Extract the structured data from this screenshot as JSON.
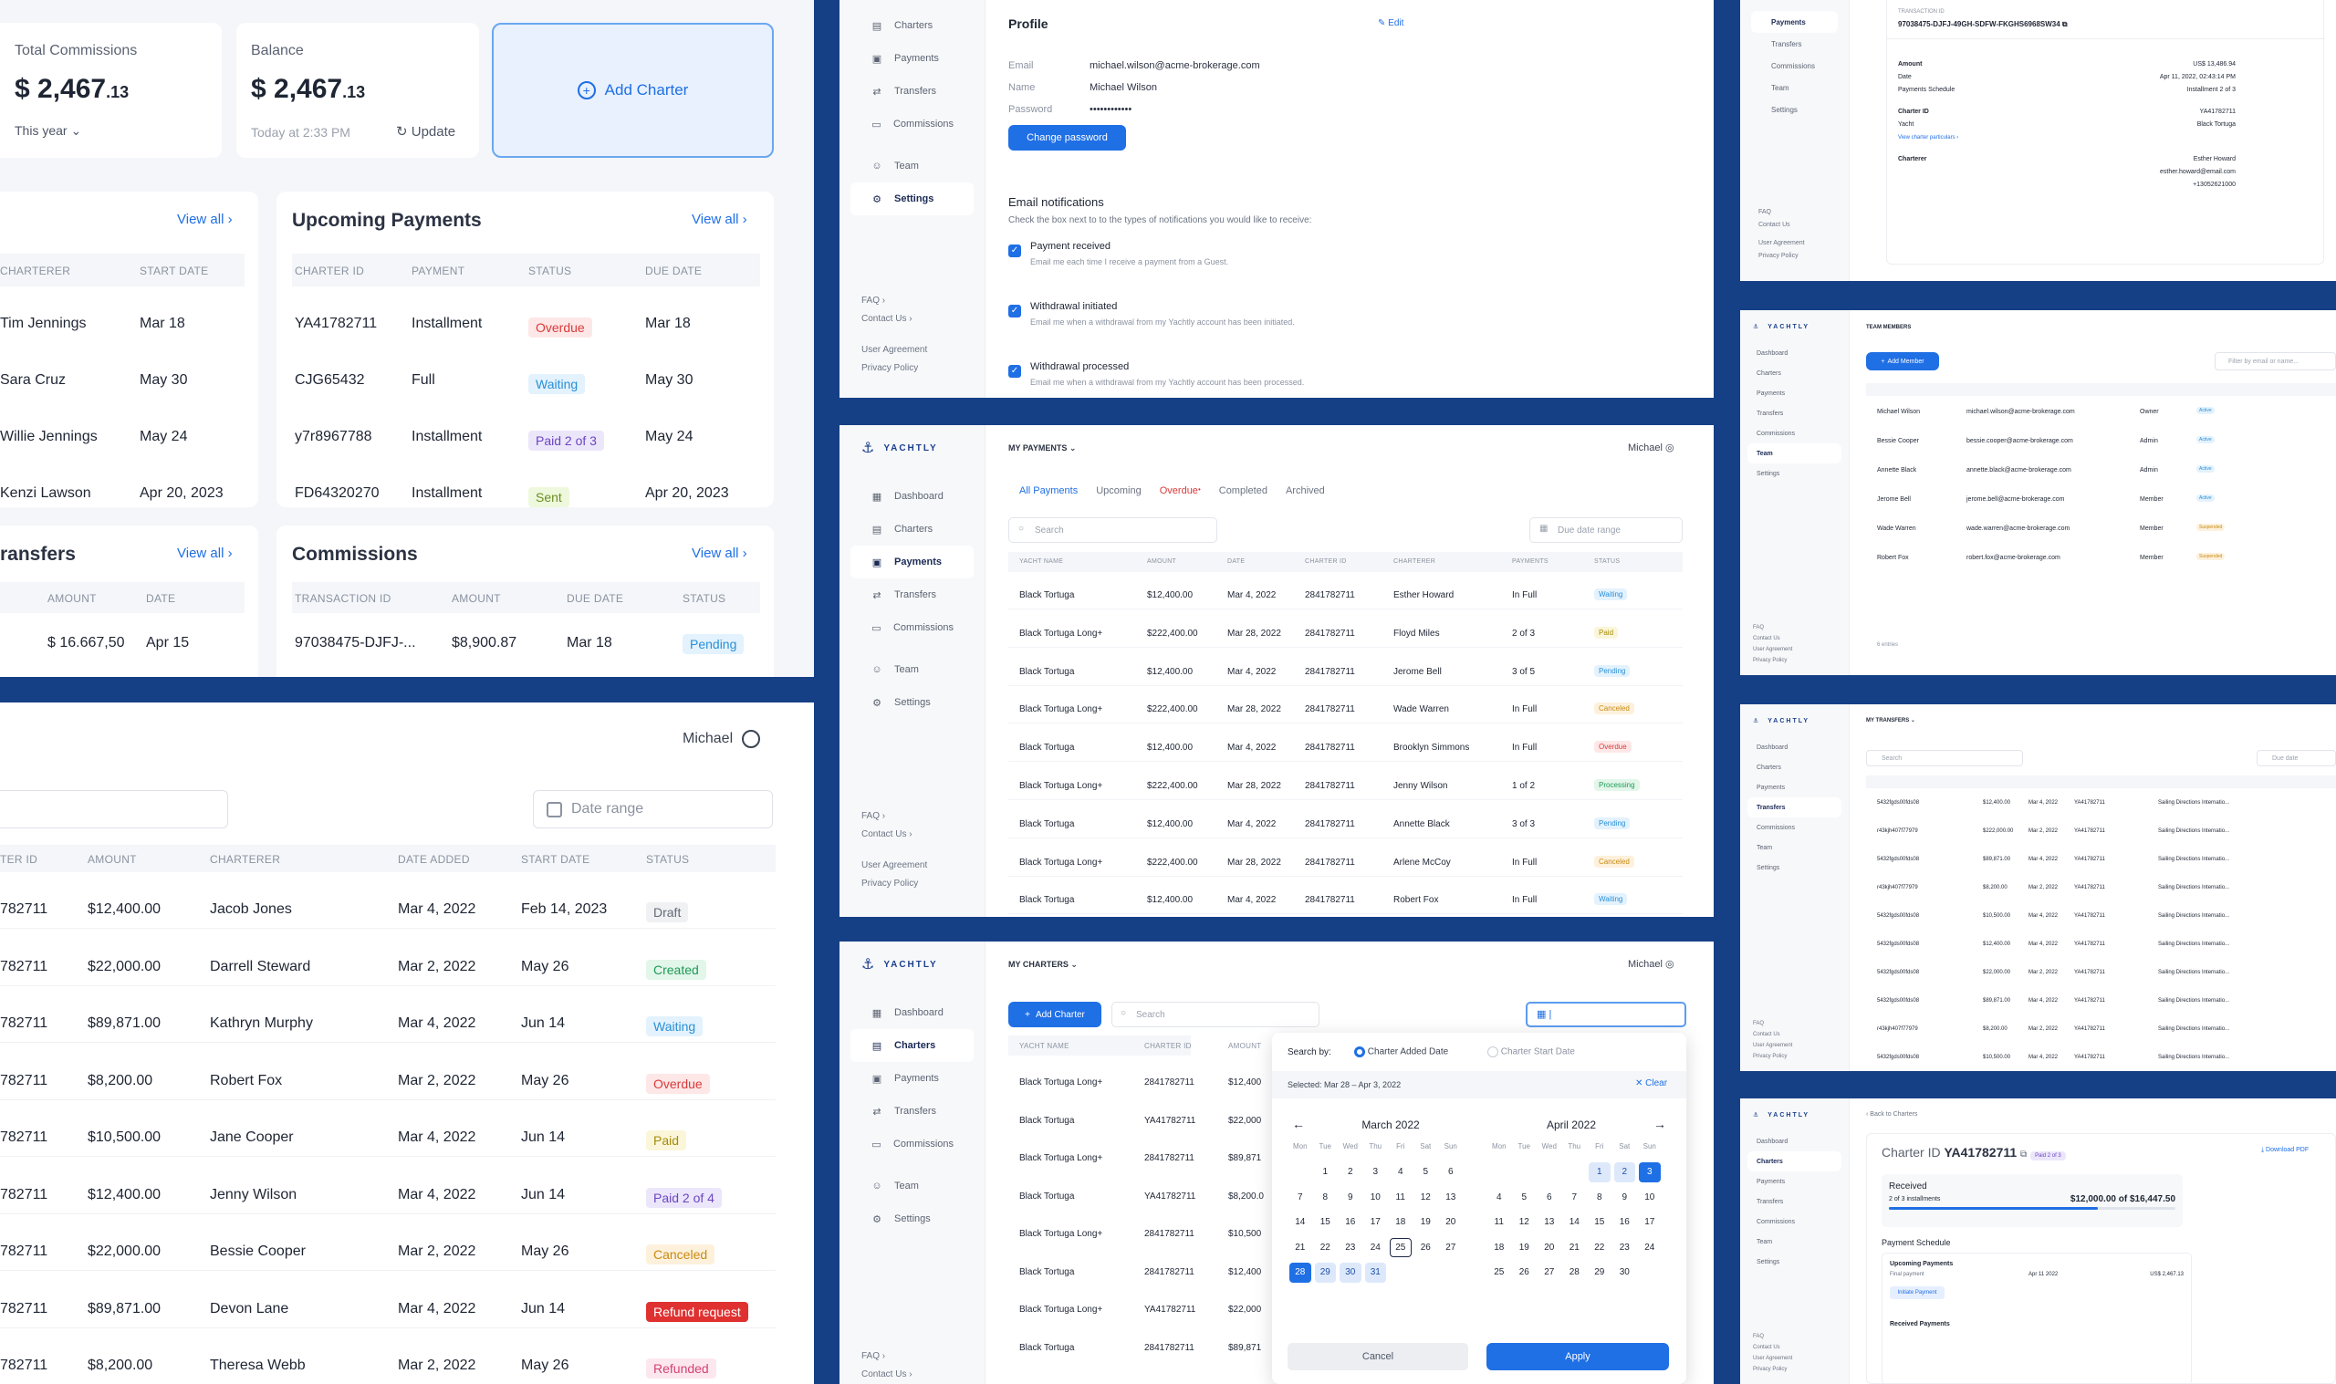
{
  "dash": {
    "total_commissions": {
      "label": "Total Commissions",
      "amount": "$ 2,467",
      "cents": ".13",
      "period": "This year"
    },
    "balance": {
      "label": "Balance",
      "amount": "$ 2,467",
      "cents": ".13",
      "updated": "Today at 2:33 PM",
      "update_btn": "Update"
    },
    "add_charter": "Add Charter",
    "view_all": "View all",
    "left_table": {
      "headers": [
        "CHARTERER",
        "START DATE"
      ],
      "rows": [
        [
          "Tim Jennings",
          "Mar 18"
        ],
        [
          "Sara Cruz",
          "May 30"
        ],
        [
          "Willie Jennings",
          "May 24"
        ],
        [
          "Kenzi Lawson",
          "Apr 20, 2023"
        ]
      ]
    },
    "upcoming": {
      "title": "Upcoming Payments",
      "headers": [
        "CHARTER ID",
        "PAYMENT",
        "STATUS",
        "DUE DATE"
      ],
      "rows": [
        {
          "id": "YA41782711",
          "payment": "Installment",
          "status": "Overdue",
          "due": "Mar 18"
        },
        {
          "id": "CJG65432",
          "payment": "Full",
          "status": "Waiting",
          "due": "May 30"
        },
        {
          "id": "y7r8967788",
          "payment": "Installment",
          "status": "Paid 2 of 3",
          "due": "May 24"
        },
        {
          "id": "FD64320270",
          "payment": "Installment",
          "status": "Sent",
          "due": "Apr 20, 2023"
        }
      ]
    },
    "transfers": {
      "title": "ransfers",
      "headers": [
        "AMOUNT",
        "DATE"
      ],
      "row": [
        "$ 16.667,50",
        "Apr 15"
      ]
    },
    "commissions": {
      "title": "Commissions",
      "headers": [
        "TRANSACTION ID",
        "AMOUNT",
        "DUE DATE",
        "STATUS"
      ],
      "row": {
        "id": "97038475-DJFJ-...",
        "amount": "$8,900.87",
        "due": "Mar 18",
        "status": "Pending"
      }
    }
  },
  "charters_big": {
    "user": "Michael",
    "date_range": "Date range",
    "headers": [
      "TER ID",
      "AMOUNT",
      "CHARTERER",
      "DATE ADDED",
      "START DATE",
      "STATUS"
    ],
    "rows": [
      {
        "id": "782711",
        "amount": "$12,400.00",
        "charterer": "Jacob Jones",
        "added": "Mar 4, 2022",
        "start": "Feb 14, 2023",
        "status": "Draft"
      },
      {
        "id": "782711",
        "amount": "$22,000.00",
        "charterer": "Darrell Steward",
        "added": "Mar 2, 2022",
        "start": "May 26",
        "status": "Created"
      },
      {
        "id": "782711",
        "amount": "$89,871.00",
        "charterer": "Kathryn Murphy",
        "added": "Mar 4, 2022",
        "start": "Jun 14",
        "status": "Waiting"
      },
      {
        "id": "782711",
        "amount": "$8,200.00",
        "charterer": "Robert Fox",
        "added": "Mar 2, 2022",
        "start": "May 26",
        "status": "Overdue"
      },
      {
        "id": "782711",
        "amount": "$10,500.00",
        "charterer": "Jane Cooper",
        "added": "Mar 4, 2022",
        "start": "Jun 14",
        "status": "Paid"
      },
      {
        "id": "782711",
        "amount": "$12,400.00",
        "charterer": "Jenny Wilson",
        "added": "Mar 4, 2022",
        "start": "Jun 14",
        "status": "Paid 2 of 4"
      },
      {
        "id": "782711",
        "amount": "$22,000.00",
        "charterer": "Bessie Cooper",
        "added": "Mar 2, 2022",
        "start": "May 26",
        "status": "Canceled"
      },
      {
        "id": "782711",
        "amount": "$89,871.00",
        "charterer": "Devon Lane",
        "added": "Mar 4, 2022",
        "start": "Jun 14",
        "status": "Refund request"
      },
      {
        "id": "782711",
        "amount": "$8,200.00",
        "charterer": "Theresa Webb",
        "added": "Mar 2, 2022",
        "start": "May 26",
        "status": "Refunded"
      }
    ]
  },
  "nav": {
    "brand": "YACHTLY",
    "dashboard": "Dashboard",
    "charters": "Charters",
    "payments": "Payments",
    "transfers": "Transfers",
    "commissions": "Commissions",
    "team": "Team",
    "settings": "Settings",
    "faq": "FAQ",
    "contact": "Contact Us",
    "agreement": "User Agreement",
    "privacy": "Privacy Policy"
  },
  "settings": {
    "profile": "Profile",
    "edit": "Edit",
    "email_label": "Email",
    "email": "michael.wilson@acme-brokerage.com",
    "name_label": "Name",
    "name": "Michael Wilson",
    "password_label": "Password",
    "password": "••••••••••••",
    "change_pw": "Change password",
    "notif_title": "Email notifications",
    "notif_desc": "Check the box next to to the types of notifications you would like to receive:",
    "n1": "Payment received",
    "n1d": "Email me each time I receive a payment from a Guest.",
    "n2": "Withdrawal initiated",
    "n2d": "Email me when a withdrawal from my Yachtly account has been initiated.",
    "n3": "Withdrawal processed",
    "n3d": "Email me when a withdrawal from my Yachtly account has been processed."
  },
  "payments": {
    "title": "MY PAYMENTS",
    "user": "Michael",
    "tabs": [
      "All Payments",
      "Upcoming",
      "Overdue",
      "Completed",
      "Archived"
    ],
    "search": "Search",
    "due_range": "Due date range",
    "headers": [
      "YACHT NAME",
      "AMOUNT",
      "DATE",
      "CHARTER ID",
      "CHARTERER",
      "PAYMENTS",
      "STATUS"
    ],
    "rows": [
      [
        "Black Tortuga",
        "$12,400.00",
        "Mar 4, 2022",
        "2841782711",
        "Esther Howard",
        "In Full",
        "Waiting"
      ],
      [
        "Black Tortuga Long+",
        "$222,400.00",
        "Mar 28, 2022",
        "2841782711",
        "Floyd Miles",
        "2 of 3",
        "Paid"
      ],
      [
        "Black Tortuga",
        "$12,400.00",
        "Mar 4, 2022",
        "2841782711",
        "Jerome Bell",
        "3 of 5",
        "Pending"
      ],
      [
        "Black Tortuga Long+",
        "$222,400.00",
        "Mar 28, 2022",
        "2841782711",
        "Wade Warren",
        "In Full",
        "Canceled"
      ],
      [
        "Black Tortuga",
        "$12,400.00",
        "Mar 4, 2022",
        "2841782711",
        "Brooklyn Simmons",
        "In Full",
        "Overdue"
      ],
      [
        "Black Tortuga Long+",
        "$222,400.00",
        "Mar 28, 2022",
        "2841782711",
        "Jenny Wilson",
        "1 of 2",
        "Processing"
      ],
      [
        "Black Tortuga",
        "$12,400.00",
        "Mar 4, 2022",
        "2841782711",
        "Annette Black",
        "3 of 3",
        "Pending"
      ],
      [
        "Black Tortuga Long+",
        "$222,400.00",
        "Mar 28, 2022",
        "2841782711",
        "Arlene McCoy",
        "In Full",
        "Canceled"
      ],
      [
        "Black Tortuga",
        "$12,400.00",
        "Mar 4, 2022",
        "2841782711",
        "Robert Fox",
        "In Full",
        "Waiting"
      ]
    ]
  },
  "charters_small": {
    "title": "MY CHARTERS",
    "user": "Michael",
    "add": "Add Charter",
    "search": "Search",
    "headers": [
      "YACHT NAME",
      "CHARTER ID",
      "AMOUNT"
    ],
    "rows": [
      [
        "Black Tortuga Long+",
        "2841782711",
        "$12,400"
      ],
      [
        "Black Tortuga",
        "YA41782711",
        "$22,000"
      ],
      [
        "Black Tortuga Long+",
        "2841782711",
        "$89,871"
      ],
      [
        "Black Tortuga",
        "YA41782711",
        "$8,200.0"
      ],
      [
        "Black Tortuga Long+",
        "2841782711",
        "$10,500"
      ],
      [
        "Black Tortuga",
        "2841782711",
        "$12,400"
      ],
      [
        "Black Tortuga Long+",
        "YA41782711",
        "$22,000"
      ],
      [
        "Black Tortuga",
        "2841782711",
        "$89,871"
      ]
    ],
    "picker": {
      "search_by": "Search by:",
      "opt1": "Charter Added Date",
      "opt2": "Charter Start Date",
      "selected": "Selected: Mar 28 – Apr 3, 2022",
      "clear": "Clear",
      "m1": "March 2022",
      "m2": "April 2022",
      "days": [
        "Mon",
        "Tue",
        "Wed",
        "Thu",
        "Fri",
        "Sat",
        "Sun"
      ],
      "cancel": "Cancel",
      "apply": "Apply"
    }
  },
  "right_top": {
    "tx_label": "TRANSACTION ID",
    "tx": "97038475-DJFJ-49GH-SDFW-FKGHS6968SW34",
    "amount_l": "Amount",
    "amount": "US$ 13,486.94",
    "date_l": "Date",
    "date": "Apr 11, 2022, 02:43:14 PM",
    "sched_l": "Payments Schedule",
    "sched": "Installment 2 of 3",
    "cid_l": "Charter ID",
    "cid": "YA41782711",
    "yacht_l": "Yacht",
    "yacht": "Black Tortuga",
    "link": "View charter particulars",
    "charterer_l": "Charterer",
    "charterer": "Esther Howard",
    "c_email": "esther.howard@email.com",
    "c_phone": "+13052621000"
  },
  "team": {
    "title": "TEAM MEMBERS",
    "add": "Add Member",
    "filter": "Filter by email or name...",
    "count": "6 entries",
    "rows": [
      [
        "Michael Wilson",
        "michael.wilson@acme-brokerage.com",
        "Owner",
        "Active"
      ],
      [
        "Bessie Cooper",
        "bessie.cooper@acme-brokerage.com",
        "Admin",
        "Active"
      ],
      [
        "Annette Black",
        "annette.black@acme-brokerage.com",
        "Admin",
        "Active"
      ],
      [
        "Jerome Bell",
        "jerome.bell@acme-brokerage.com",
        "Member",
        "Active"
      ],
      [
        "Wade Warren",
        "wade.warren@acme-brokerage.com",
        "Member",
        "Suspended"
      ],
      [
        "Robert Fox",
        "robert.fox@acme-brokerage.com",
        "Member",
        "Suspended"
      ]
    ]
  },
  "transfers_small": {
    "title": "MY TRANSFERS",
    "search": "Search",
    "due": "Due date",
    "rows": [
      [
        "5432fgds00fds08",
        "$12,400.00",
        "Mar 4, 2022",
        "YA41782711",
        "Sailing Directions Internatio..."
      ],
      [
        "r43kjh407f77979",
        "$222,000.00",
        "Mar 2, 2022",
        "YA41782711",
        "Sailing Directions Internatio..."
      ],
      [
        "5432fgds00fds08",
        "$89,871.00",
        "Mar 4, 2022",
        "YA41782711",
        "Sailing Directions Internatio..."
      ],
      [
        "r43kjh407f77979",
        "$8,200.00",
        "Mar 2, 2022",
        "YA41782711",
        "Sailing Directions Internatio..."
      ],
      [
        "5432fgds00fds08",
        "$10,500.00",
        "Mar 4, 2022",
        "YA41782711",
        "Sailing Directions Internatio..."
      ],
      [
        "5432fgds00fds08",
        "$12,400.00",
        "Mar 4, 2022",
        "YA41782711",
        "Sailing Directions Internatio..."
      ],
      [
        "5432fgds00fds08",
        "$22,000.00",
        "Mar 2, 2022",
        "YA41782711",
        "Sailing Directions Internatio..."
      ],
      [
        "5432fgds00fds08",
        "$89,871.00",
        "Mar 4, 2022",
        "YA41782711",
        "Sailing Directions Internatio..."
      ],
      [
        "r43kjh407f77979",
        "$8,200.00",
        "Mar 2, 2022",
        "YA41782711",
        "Sailing Directions Internatio..."
      ],
      [
        "5432fgds00fds08",
        "$10,500.00",
        "Mar 4, 2022",
        "YA41782711",
        "Sailing Directions Internatio..."
      ]
    ]
  },
  "charter_detail": {
    "back": "Back to Charters",
    "cid_l": "Charter ID",
    "cid": "YA41782711",
    "badge": "Paid 2 of 3",
    "pdf": "Download PDF",
    "received": "Received",
    "inst": "2 of 3 installments",
    "progress_amt": "$12,000.00 of $16,447.50",
    "progress": 0.73,
    "sched": "Payment Schedule",
    "upcoming": "Upcoming Payments",
    "final": "Final payment",
    "final_date": "Apr 11 2022",
    "final_amt": "US$ 2,467.13",
    "initiate": "Initiate Payment",
    "received_p": "Received Payments"
  }
}
